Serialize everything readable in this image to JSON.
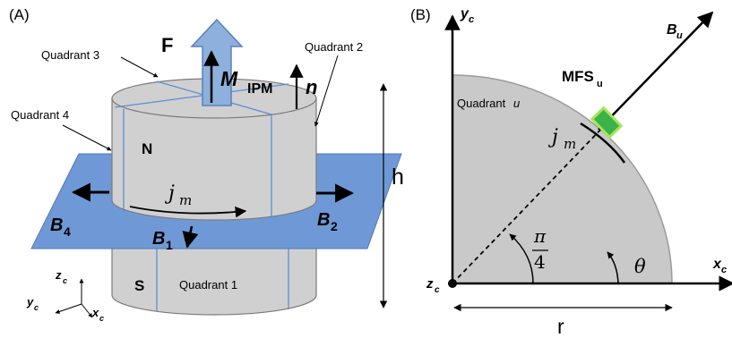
{
  "panel_a": {
    "label": "(A)",
    "force_label": "F",
    "moment_symbol": "M",
    "moment_subscript": "IPM",
    "normal_label": "n",
    "quadrant_labels": [
      "Quadrant 3",
      "Quadrant 2",
      "Quadrant 4",
      "Quadrant 1"
    ],
    "north_label": "N",
    "south_label": "S",
    "current_symbol": "j",
    "current_subscript": "m",
    "field_labels": [
      {
        "main": "B",
        "sub": "4"
      },
      {
        "main": "B",
        "sub": "1"
      },
      {
        "main": "B",
        "sub": "2"
      }
    ],
    "height_label": "h",
    "axes": {
      "z": "z",
      "y": "y",
      "x": "x",
      "sub": "c"
    },
    "colors": {
      "magnet": "#d0d0d0",
      "plane": "#6f99d6",
      "arrow_fill": "#8db0dc",
      "arrow_stroke": "#5a80b8",
      "quadrant_lines": "#5a8ed6"
    }
  },
  "panel_b": {
    "label": "(B)",
    "axes": {
      "y": "y",
      "x": "x",
      "z": "z",
      "sub": "c"
    },
    "field_label": {
      "main": "B",
      "sub": "u"
    },
    "sensor_label": {
      "main": "MFS",
      "sub": "u"
    },
    "quadrant_label": {
      "text": "Quadrant",
      "index": "u"
    },
    "current_symbol": "j",
    "current_subscript": "m",
    "angle_fraction": {
      "numerator": "π",
      "denominator": "4"
    },
    "theta_label": "θ",
    "radius_label": "r",
    "colors": {
      "quadrant_fill": "#c9c9c9",
      "sensor": "#3bb34a",
      "sensor_border": "#a6e55a"
    }
  }
}
